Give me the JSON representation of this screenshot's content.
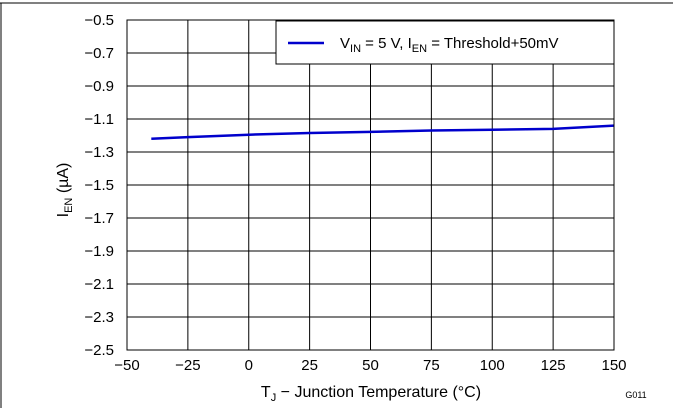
{
  "chart_data": {
    "type": "line",
    "xlabel": {
      "main": "T",
      "sub": "J",
      "rest": " − Junction Temperature (°C)"
    },
    "ylabel": {
      "main": "I",
      "sub": "EN",
      "rest": " (µA)"
    },
    "xlim": [
      -50,
      150
    ],
    "ylim": [
      -2.5,
      -0.5
    ],
    "x_ticks": [
      -50,
      -25,
      0,
      25,
      50,
      75,
      100,
      125,
      150
    ],
    "x_tick_labels": [
      "−50",
      "−25",
      "0",
      "25",
      "50",
      "75",
      "100",
      "125",
      "150"
    ],
    "y_ticks": [
      -0.5,
      -0.7,
      -0.9,
      -1.1,
      -1.3,
      -1.5,
      -1.7,
      -1.9,
      -2.1,
      -2.3,
      -2.5
    ],
    "y_tick_labels": [
      "−0.5",
      "−0.7",
      "−0.9",
      "−1.1",
      "−1.3",
      "−1.5",
      "−1.7",
      "−1.9",
      "−2.1",
      "−2.3",
      "−2.5"
    ],
    "grid": true,
    "legend_position": "top-right",
    "series": [
      {
        "legend": [
          {
            "t": "V",
            "s": false
          },
          {
            "t": "IN",
            "s": true
          },
          {
            "t": " = 5 V, I",
            "s": false
          },
          {
            "t": "EN",
            "s": true
          },
          {
            "t": " = Threshold+50mV",
            "s": false
          }
        ],
        "color": "#0000cc",
        "x": [
          -40,
          -25,
          0,
          25,
          50,
          75,
          100,
          125,
          150
        ],
        "y": [
          -1.22,
          -1.21,
          -1.195,
          -1.185,
          -1.178,
          -1.17,
          -1.165,
          -1.16,
          -1.14
        ]
      }
    ],
    "figure_id": "G011"
  }
}
